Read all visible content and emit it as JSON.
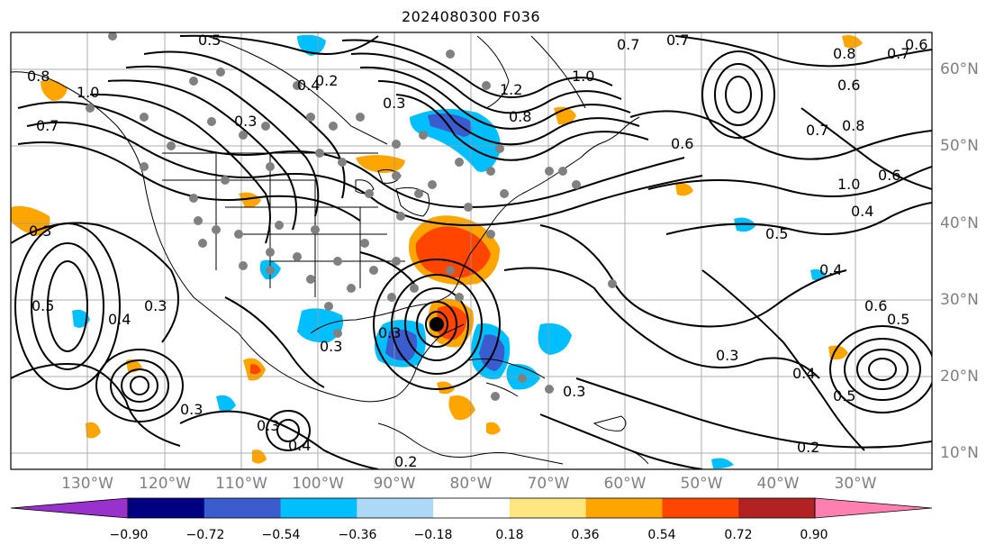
{
  "title": "2024080300 F036",
  "latitude_labels": [
    "60°N",
    "50°N",
    "40°N",
    "30°N",
    "20°N",
    "10°N"
  ],
  "longitude_labels": [
    "130°W",
    "120°W",
    "110°W",
    "100°W",
    "90°W",
    "80°W",
    "70°W",
    "60°W",
    "50°W",
    "40°W",
    "30°W"
  ],
  "colorbar": {
    "ticks": [
      "−0.90",
      "−0.72",
      "−0.54",
      "−0.36",
      "−0.18",
      "0.18",
      "0.36",
      "0.54",
      "0.72",
      "0.90"
    ],
    "colors": [
      "#9932cc",
      "#000080",
      "#3a5ccc",
      "#00bfff",
      "#add8f6",
      "#ffffff",
      "#ffe680",
      "#ffa500",
      "#ff4500",
      "#b22222",
      "#ff80b0"
    ]
  },
  "contour_labels": [
    "0.5",
    "0.7",
    "0.7",
    "0.6",
    "0.8",
    "0.7",
    "0.6",
    "0.7",
    "0.8",
    "1.0",
    "0.6",
    "0.4",
    "0.5",
    "0.4",
    "0.6",
    "0.5",
    "0.3",
    "0.4",
    "0.5",
    "0.3",
    "0.2",
    "0.2",
    "0.3",
    "0.4",
    "0.3",
    "0.4",
    "0.5",
    "0.3",
    "0.3",
    "1.0",
    "0.8",
    "0.7",
    "0.4",
    "0.3",
    "0.2",
    "0.3",
    "0.3",
    "0.3",
    "1.0",
    "0.8",
    "0.6",
    "1.2"
  ]
}
